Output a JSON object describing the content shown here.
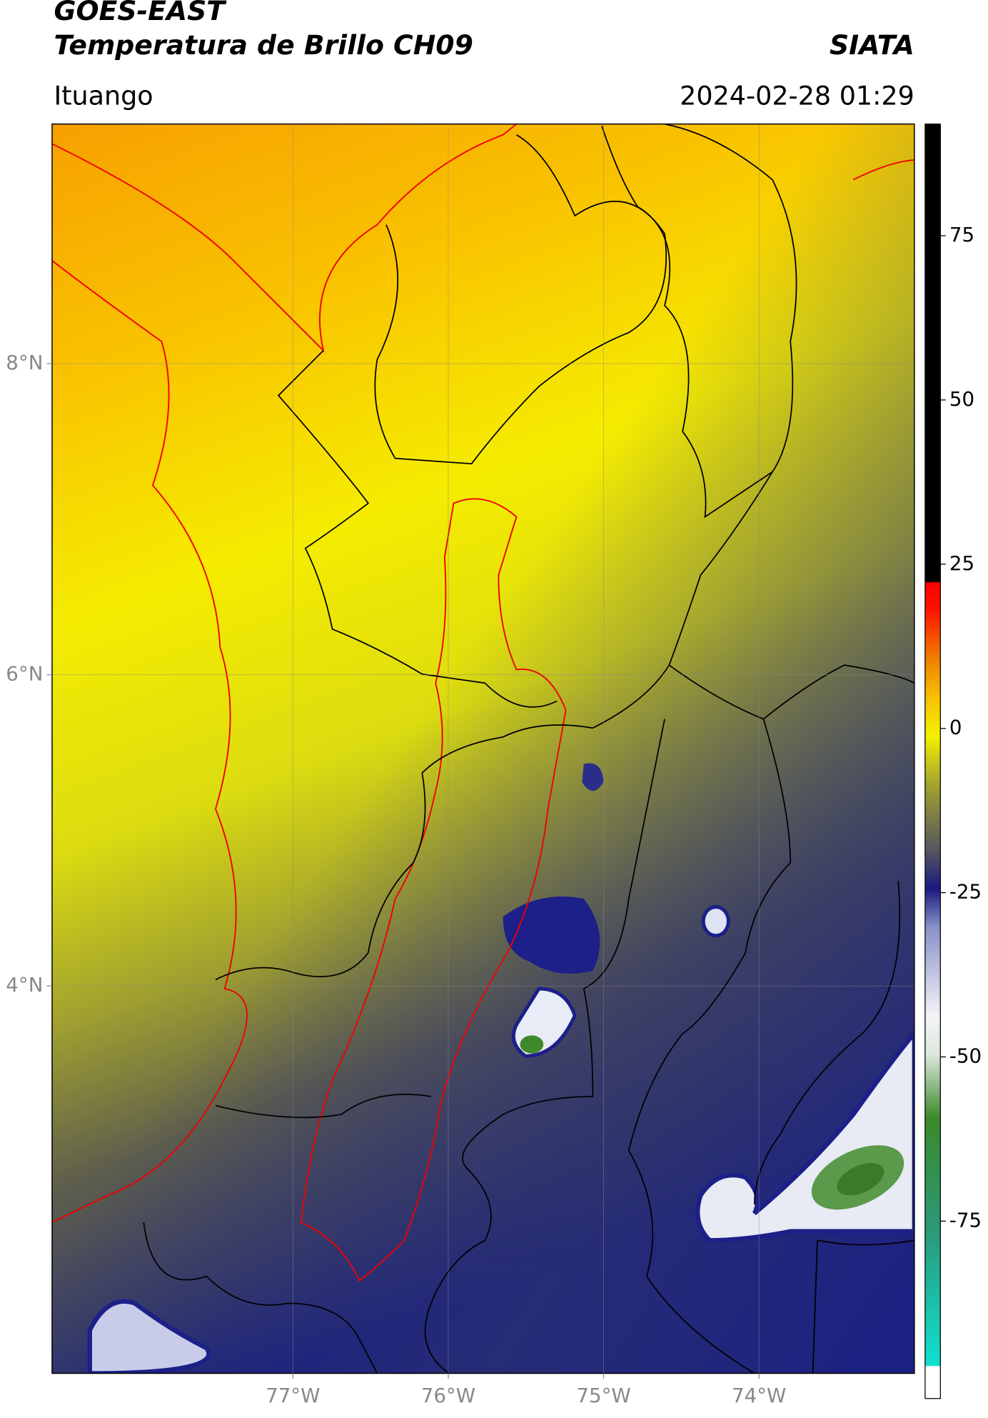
{
  "header": {
    "title": "GOES-EAST",
    "subtitle": "Temperatura de Brillo CH09",
    "source": "SIATA",
    "location": "Ituango",
    "datetime": "2024-02-28 01:29"
  },
  "map": {
    "xlim": [
      -78.55,
      -73.0
    ],
    "ylim": [
      1.51,
      9.54
    ],
    "grid": true,
    "xticks": [
      {
        "value": -77,
        "label": "77°W"
      },
      {
        "value": -76,
        "label": "76°W"
      },
      {
        "value": -75,
        "label": "75°W"
      },
      {
        "value": -74,
        "label": "74°W"
      }
    ],
    "yticks": [
      {
        "value": 4,
        "label": "4°N"
      },
      {
        "value": 6,
        "label": "6°N"
      },
      {
        "value": 8,
        "label": "8°N"
      }
    ]
  },
  "colorbar": {
    "lim": [
      -102,
      92
    ],
    "ticks": [
      75,
      50,
      25,
      0,
      -25,
      -50,
      -75
    ]
  }
}
